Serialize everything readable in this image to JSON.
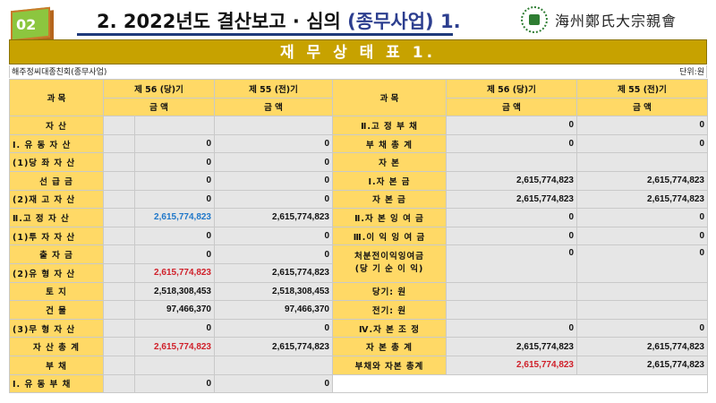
{
  "badge": "02",
  "title": {
    "prefix": "2. 2022년도 ",
    "main": "결산보고 · 심의 ",
    "paren": "(종무사업)",
    "suffix": " 1."
  },
  "logo": {
    "text": "海州鄭氏大宗親會"
  },
  "banner": "재 무 상 태 표 1.",
  "org": "해주정씨대종친회(종무사업)",
  "unit": "단위:원",
  "colors": {
    "header": "#ffd966",
    "banner": "#c7a200",
    "red": "#d0202a",
    "blue": "#1f77c9",
    "value_bg": "#e6e6e6"
  },
  "headers": {
    "account": "과        목",
    "current": "제 56 (당)기",
    "previous": "제 55 (전)기",
    "amount": "금        액"
  },
  "left_rows": [
    {
      "label": "자        산",
      "cur": "",
      "prev": "",
      "cur_color": ""
    },
    {
      "label": "Ⅰ. 유 동 자 산",
      "cur": "0",
      "prev": "0",
      "cur_color": "",
      "align": "left"
    },
    {
      "label": "(1)당 좌 자 산",
      "cur": "0",
      "prev": "0",
      "cur_color": "",
      "align": "left"
    },
    {
      "label": "선   급   금",
      "cur": "0",
      "prev": "0",
      "cur_color": ""
    },
    {
      "label": "(2)재 고 자 산",
      "cur": "0",
      "prev": "0",
      "cur_color": "",
      "align": "left"
    },
    {
      "label": "Ⅱ.고 정 자 산",
      "cur": "2,615,774,823",
      "prev": "2,615,774,823",
      "cur_color": "blue",
      "align": "left"
    },
    {
      "label": "(1)투 자 자 산",
      "cur": "0",
      "prev": "0",
      "cur_color": "",
      "align": "left"
    },
    {
      "label": "출   자   금",
      "cur": "0",
      "prev": "0",
      "cur_color": ""
    },
    {
      "label": "(2)유 형 자 산",
      "cur": "2,615,774,823",
      "prev": "2,615,774,823",
      "cur_color": "red",
      "align": "left"
    },
    {
      "label": "토        지",
      "cur": "2,518,308,453",
      "prev": "2,518,308,453",
      "cur_color": ""
    },
    {
      "label": "건        물",
      "cur": "97,466,370",
      "prev": "97,466,370",
      "cur_color": ""
    },
    {
      "label": "(3)무 형 자 산",
      "cur": "0",
      "prev": "0",
      "cur_color": "",
      "align": "left"
    },
    {
      "label": "자 산 총 계",
      "cur": "2,615,774,823",
      "prev": "2,615,774,823",
      "cur_color": "red"
    },
    {
      "label": "부        채",
      "cur": "",
      "prev": "",
      "cur_color": ""
    },
    {
      "label": "Ⅰ. 유 동 부 채",
      "cur": "0",
      "prev": "0",
      "cur_color": "",
      "align": "left"
    }
  ],
  "right_rows": [
    {
      "label": "Ⅱ.고 정 부 채",
      "cur": "0",
      "prev": "0"
    },
    {
      "label": "부 채 총 계",
      "cur": "0",
      "prev": "0"
    },
    {
      "label": "자        본",
      "cur": "",
      "prev": ""
    },
    {
      "label": "Ⅰ.자 본 금",
      "cur": "2,615,774,823",
      "prev": "2,615,774,823"
    },
    {
      "label": "자   본   금",
      "cur": "2,615,774,823",
      "prev": "2,615,774,823"
    },
    {
      "label": "Ⅱ.자 본 잉 여 금",
      "cur": "0",
      "prev": "0"
    },
    {
      "label": "Ⅲ.이 익 잉 여 금",
      "cur": "0",
      "prev": "0"
    },
    {
      "label": "처분전이익잉여금",
      "label2": "(당 기 순 이 익)",
      "cur": "0",
      "prev": "0"
    },
    {
      "label": "당기:         원",
      "cur": "",
      "prev": ""
    },
    {
      "label": "전기:         원",
      "cur": "",
      "prev": ""
    },
    {
      "label": "Ⅳ.자 본 조 정",
      "cur": "0",
      "prev": "0"
    },
    {
      "label": "자 본 총 계",
      "cur": "2,615,774,823",
      "prev": "2,615,774,823"
    },
    {
      "label": "부채와 자본 총계",
      "cur": "2,615,774,823",
      "prev": "2,615,774,823",
      "cur_color": "red"
    }
  ]
}
